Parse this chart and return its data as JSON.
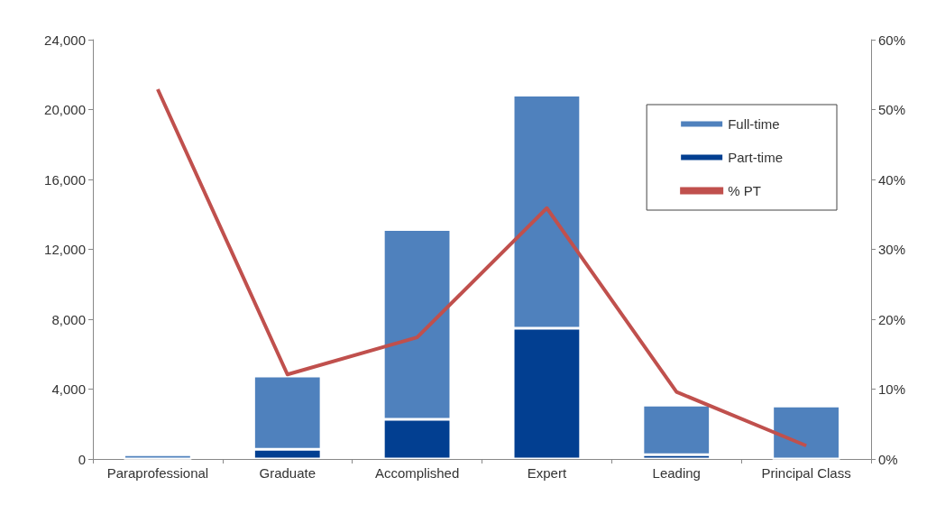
{
  "chart_data": {
    "type": "bar",
    "stacked": true,
    "categories": [
      "Paraprofessional",
      "Graduate",
      "Accomplished",
      "Expert",
      "Leading",
      "Principal Class"
    ],
    "series": [
      {
        "name": "Part-time",
        "color": "#023f91",
        "values": [
          0,
          560,
          2270,
          7480,
          250,
          0
        ]
      },
      {
        "name": "Full-time",
        "color": "#4f81bd",
        "values": [
          250,
          4190,
          10870,
          13340,
          2830,
          3030
        ]
      },
      {
        "name": "% PT",
        "type": "line",
        "axis": "y2",
        "color": "#c0504d",
        "values": [
          52.9,
          12.1,
          17.4,
          35.9,
          9.6,
          1.9
        ]
      }
    ],
    "ylim": [
      0,
      24000
    ],
    "yticks": [
      0,
      {
        "value": 4000,
        "label": "4,000"
      },
      {
        "value": 8000,
        "label": "8,000"
      },
      {
        "value": 12000,
        "label": "12,000"
      },
      {
        "value": 16000,
        "label": "16,000"
      },
      {
        "value": 20000,
        "label": "20,000"
      },
      {
        "value": 24000,
        "label": "24,000"
      }
    ],
    "y2lim": [
      0,
      60
    ],
    "y2ticks": [
      {
        "value": 0,
        "label": "0%"
      },
      {
        "value": 10,
        "label": "10%"
      },
      {
        "value": 20,
        "label": "20%"
      },
      {
        "value": 30,
        "label": "30%"
      },
      {
        "value": 40,
        "label": "40%"
      },
      {
        "value": 50,
        "label": "50%"
      },
      {
        "value": 60,
        "label": "60%"
      }
    ],
    "grid": false,
    "legend": "top right",
    "marker": "none",
    "line_style": "solid"
  }
}
